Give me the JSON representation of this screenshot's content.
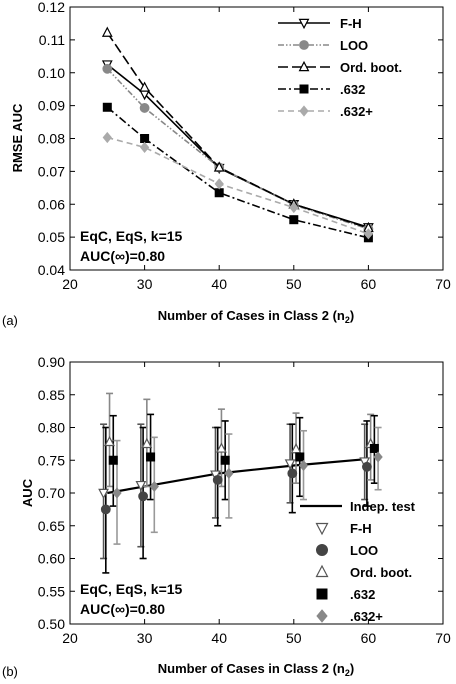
{
  "chart_data": [
    {
      "type": "line",
      "panel_label": "(a)",
      "xlabel": "Number of Cases in Class 2 (n",
      "xlabel_sub": "2",
      "xlabel_end": ")",
      "ylabel": "RMSE AUC",
      "xlim": [
        20,
        70
      ],
      "ylim": [
        0.04,
        0.12
      ],
      "xticks": [
        20,
        30,
        40,
        50,
        60,
        70
      ],
      "xtick_labels": [
        "20",
        "30",
        "40",
        "50",
        "60",
        "70"
      ],
      "yticks": [
        0.04,
        0.05,
        0.06,
        0.07,
        0.08,
        0.09,
        0.1,
        0.11,
        0.12
      ],
      "ytick_labels": [
        "0.04",
        "0.05",
        "0.06",
        "0.07",
        "0.08",
        "0.09",
        "0.10",
        "0.11",
        "0.12"
      ],
      "x": [
        25,
        30,
        40,
        50,
        60
      ],
      "annotations": [
        "EqC, EqS, k=15",
        "AUC(∞)=0.80"
      ],
      "legend_position": "top-right",
      "series": [
        {
          "name": "F-H",
          "values": [
            0.1025,
            0.0935,
            0.071,
            0.06,
            0.053
          ],
          "marker": "triangle-down-open",
          "line": "solid",
          "color": "#000000"
        },
        {
          "name": "LOO",
          "values": [
            0.1012,
            0.0893,
            0.0712,
            0.0598,
            0.0525
          ],
          "marker": "circle",
          "line": "dash-dot-dot",
          "color": "#888888"
        },
        {
          "name": "Ord. boot.",
          "values": [
            0.1122,
            0.0955,
            0.0712,
            0.06,
            0.0528
          ],
          "marker": "triangle-up-open",
          "line": "long-dash",
          "color": "#000000"
        },
        {
          "name": ".632",
          "values": [
            0.0895,
            0.08,
            0.0635,
            0.0553,
            0.0498
          ],
          "marker": "square",
          "line": "dash-dot",
          "color": "#000000"
        },
        {
          "name": ".632+",
          "values": [
            0.0803,
            0.0773,
            0.0662,
            0.059,
            0.051
          ],
          "marker": "diamond",
          "line": "dash",
          "color": "#aaaaaa"
        }
      ]
    },
    {
      "type": "line",
      "panel_label": "(b)",
      "xlabel": "Number of Cases in Class 2 (n",
      "xlabel_sub": "2",
      "xlabel_end": ")",
      "ylabel": "AUC",
      "xlim": [
        20,
        70
      ],
      "ylim": [
        0.5,
        0.9
      ],
      "xticks": [
        20,
        30,
        40,
        50,
        60,
        70
      ],
      "xtick_labels": [
        "20",
        "30",
        "40",
        "50",
        "60",
        "70"
      ],
      "yticks": [
        0.5,
        0.55,
        0.6,
        0.65,
        0.7,
        0.75,
        0.8,
        0.85,
        0.9
      ],
      "ytick_labels": [
        "0.50",
        "0.55",
        "0.60",
        "0.65",
        "0.70",
        "0.75",
        "0.80",
        "0.85",
        "0.90"
      ],
      "annotations": [
        "EqC, EqS, k=15",
        "AUC(∞)=0.80"
      ],
      "legend_position": "bottom-right",
      "indep_test": {
        "name": "Indep. test",
        "x": [
          25,
          30,
          40,
          50,
          60
        ],
        "values": [
          0.7,
          0.71,
          0.73,
          0.742,
          0.752
        ]
      },
      "series": [
        {
          "name": "F-H",
          "marker": "triangle-down-open",
          "color": "#ffffff",
          "errcolor": "#555555",
          "points": [
            {
              "x": 24.5,
              "y": 0.7,
              "lo": 0.6,
              "hi": 0.805
            },
            {
              "x": 29.5,
              "y": 0.712,
              "lo": 0.618,
              "hi": 0.805
            },
            {
              "x": 39.5,
              "y": 0.728,
              "lo": 0.662,
              "hi": 0.8
            },
            {
              "x": 49.5,
              "y": 0.745,
              "lo": 0.685,
              "hi": 0.805
            },
            {
              "x": 59.5,
              "y": 0.748,
              "lo": 0.69,
              "hi": 0.805
            }
          ]
        },
        {
          "name": "LOO",
          "marker": "circle",
          "color": "#444444",
          "errcolor": "#000000",
          "points": [
            {
              "x": 24.8,
              "y": 0.675,
              "lo": 0.578,
              "hi": 0.8
            },
            {
              "x": 29.8,
              "y": 0.695,
              "lo": 0.6,
              "hi": 0.8
            },
            {
              "x": 39.8,
              "y": 0.72,
              "lo": 0.65,
              "hi": 0.8
            },
            {
              "x": 49.8,
              "y": 0.73,
              "lo": 0.67,
              "hi": 0.805
            },
            {
              "x": 59.8,
              "y": 0.74,
              "lo": 0.68,
              "hi": 0.81
            }
          ]
        },
        {
          "name": "Ord. boot.",
          "marker": "triangle-up-open",
          "color": "#ffffff",
          "errcolor": "#888888",
          "points": [
            {
              "x": 25.3,
              "y": 0.778,
              "lo": 0.71,
              "hi": 0.852
            },
            {
              "x": 30.3,
              "y": 0.775,
              "lo": 0.71,
              "hi": 0.843
            },
            {
              "x": 40.3,
              "y": 0.768,
              "lo": 0.71,
              "hi": 0.828
            },
            {
              "x": 50.3,
              "y": 0.767,
              "lo": 0.715,
              "hi": 0.822
            },
            {
              "x": 60.3,
              "y": 0.775,
              "lo": 0.72,
              "hi": 0.82
            }
          ]
        },
        {
          "name": ".632",
          "marker": "square",
          "color": "#000000",
          "errcolor": "#000000",
          "points": [
            {
              "x": 25.8,
              "y": 0.75,
              "lo": 0.68,
              "hi": 0.818
            },
            {
              "x": 30.8,
              "y": 0.755,
              "lo": 0.69,
              "hi": 0.82
            },
            {
              "x": 40.8,
              "y": 0.75,
              "lo": 0.69,
              "hi": 0.81
            },
            {
              "x": 50.8,
              "y": 0.755,
              "lo": 0.695,
              "hi": 0.815
            },
            {
              "x": 60.8,
              "y": 0.768,
              "lo": 0.715,
              "hi": 0.818
            }
          ]
        },
        {
          "name": ".632+",
          "marker": "diamond",
          "color": "#888888",
          "errcolor": "#999999",
          "points": [
            {
              "x": 26.3,
              "y": 0.7,
              "lo": 0.622,
              "hi": 0.78
            },
            {
              "x": 31.3,
              "y": 0.71,
              "lo": 0.64,
              "hi": 0.785
            },
            {
              "x": 41.3,
              "y": 0.73,
              "lo": 0.662,
              "hi": 0.79
            },
            {
              "x": 51.3,
              "y": 0.742,
              "lo": 0.69,
              "hi": 0.795
            },
            {
              "x": 61.3,
              "y": 0.755,
              "lo": 0.705,
              "hi": 0.8
            }
          ]
        }
      ]
    }
  ]
}
